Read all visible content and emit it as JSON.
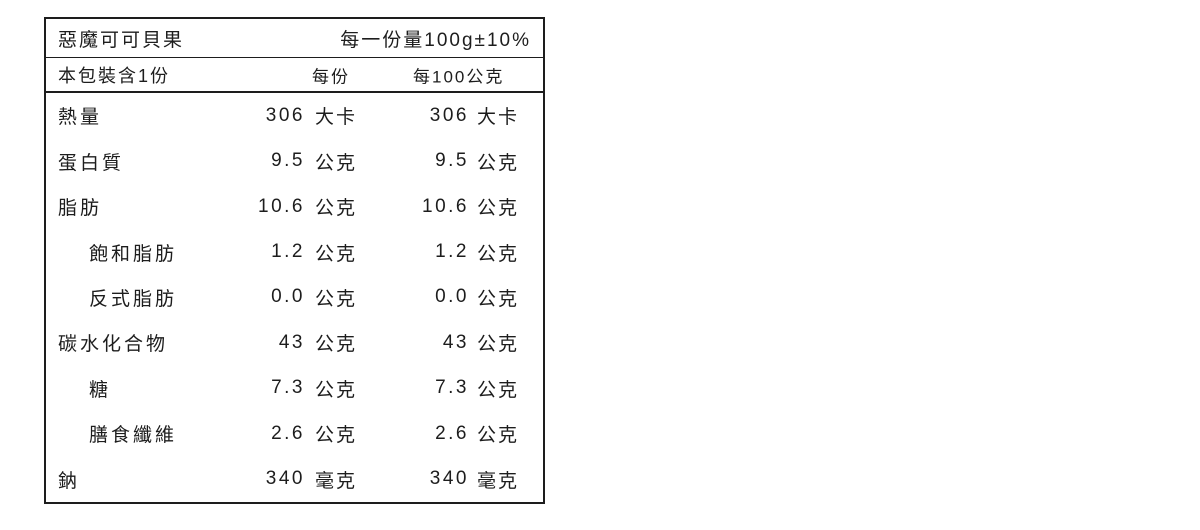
{
  "colors": {
    "background": "#ffffff",
    "text": "#1d1d1d",
    "border": "#1d1d1d"
  },
  "label": {
    "product_name": "惡魔可可貝果",
    "serving_size": "每一份量100g±10%",
    "servings_per_package": "本包裝含1份",
    "column_headers": {
      "per_serving": "每份",
      "per_100g": "每100公克"
    },
    "rows": [
      {
        "name": "熱量",
        "indent": false,
        "per_serving_value": "306",
        "per_serving_unit": "大卡",
        "per_100g_value": "306",
        "per_100g_unit": "大卡"
      },
      {
        "name": "蛋白質",
        "indent": false,
        "per_serving_value": "9.5",
        "per_serving_unit": "公克",
        "per_100g_value": "9.5",
        "per_100g_unit": "公克"
      },
      {
        "name": "脂肪",
        "indent": false,
        "per_serving_value": "10.6",
        "per_serving_unit": "公克",
        "per_100g_value": "10.6",
        "per_100g_unit": "公克"
      },
      {
        "name": "飽和脂肪",
        "indent": true,
        "per_serving_value": "1.2",
        "per_serving_unit": "公克",
        "per_100g_value": "1.2",
        "per_100g_unit": "公克"
      },
      {
        "name": "反式脂肪",
        "indent": true,
        "per_serving_value": "0.0",
        "per_serving_unit": "公克",
        "per_100g_value": "0.0",
        "per_100g_unit": "公克"
      },
      {
        "name": "碳水化合物",
        "indent": false,
        "per_serving_value": "43",
        "per_serving_unit": "公克",
        "per_100g_value": "43",
        "per_100g_unit": "公克"
      },
      {
        "name": "糖",
        "indent": true,
        "per_serving_value": "7.3",
        "per_serving_unit": "公克",
        "per_100g_value": "7.3",
        "per_100g_unit": "公克"
      },
      {
        "name": "膳食纖維",
        "indent": true,
        "per_serving_value": "2.6",
        "per_serving_unit": "公克",
        "per_100g_value": "2.6",
        "per_100g_unit": "公克"
      },
      {
        "name": "鈉",
        "indent": false,
        "per_serving_value": "340",
        "per_serving_unit": "毫克",
        "per_100g_value": "340",
        "per_100g_unit": "毫克"
      }
    ]
  }
}
